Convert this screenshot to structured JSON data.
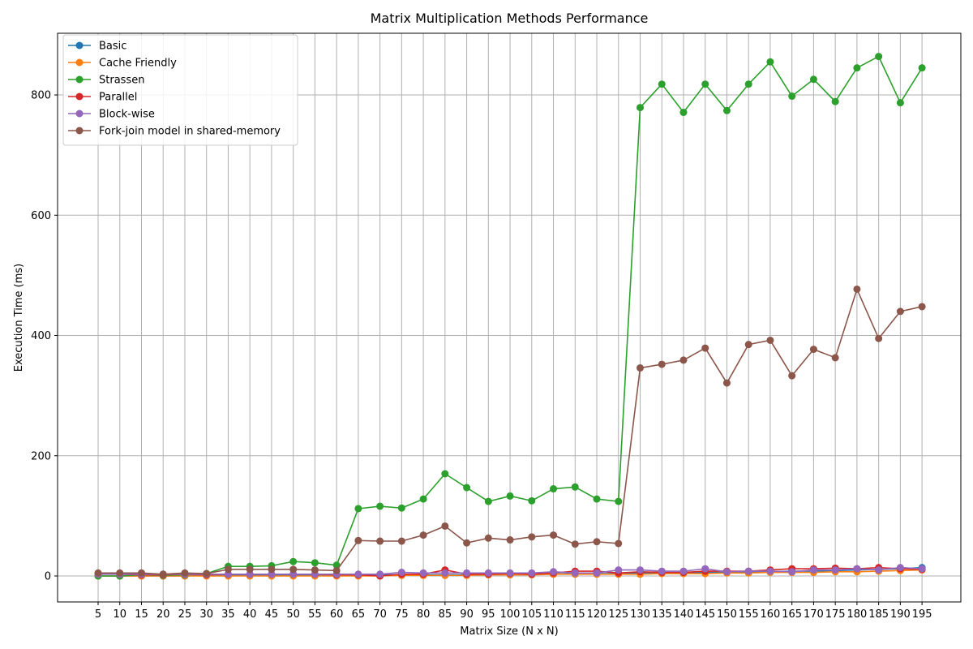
{
  "chart_data": {
    "type": "line",
    "title": "Matrix Multiplication Methods Performance",
    "xlabel": "Matrix Size (N x N)",
    "ylabel": "Execution Time (ms)",
    "ylim": [
      -45,
      900
    ],
    "yticks": [
      0,
      200,
      400,
      600,
      800
    ],
    "grid": true,
    "legend_position": "upper-left",
    "x": [
      5,
      10,
      15,
      20,
      25,
      30,
      35,
      40,
      45,
      50,
      55,
      60,
      65,
      70,
      75,
      80,
      85,
      90,
      95,
      100,
      105,
      110,
      115,
      120,
      125,
      130,
      135,
      140,
      145,
      150,
      155,
      160,
      165,
      170,
      175,
      180,
      185,
      190,
      195
    ],
    "series": [
      {
        "name": "Basic",
        "color": "#1f77b4",
        "values": [
          0,
          0,
          0,
          0,
          0,
          1,
          1,
          1,
          1,
          1,
          1,
          1,
          2,
          2,
          2,
          2,
          2,
          2,
          3,
          3,
          3,
          3,
          4,
          4,
          4,
          5,
          5,
          5,
          6,
          6,
          7,
          7,
          8,
          8,
          9,
          10,
          11,
          12,
          14
        ]
      },
      {
        "name": "Cache Friendly",
        "color": "#ff7f0e",
        "values": [
          0,
          0,
          0,
          0,
          0,
          0,
          0,
          0,
          0,
          0,
          0,
          0,
          0,
          0,
          1,
          1,
          1,
          1,
          2,
          2,
          2,
          3,
          3,
          3,
          3,
          3,
          4,
          4,
          4,
          5,
          5,
          6,
          6,
          6,
          7,
          7,
          8,
          9,
          10
        ]
      },
      {
        "name": "Strassen",
        "color": "#2ca02c",
        "values": [
          0,
          0,
          2,
          1,
          2,
          4,
          16,
          16,
          17,
          24,
          22,
          18,
          112,
          116,
          113,
          128,
          170,
          147,
          124,
          133,
          125,
          145,
          148,
          128,
          124,
          779,
          818,
          771,
          818,
          774,
          818,
          855,
          798,
          826,
          789,
          845,
          864,
          787,
          845
        ]
      },
      {
        "name": "Parallel",
        "color": "#d62728",
        "values": [
          4,
          3,
          2,
          2,
          3,
          2,
          3,
          3,
          3,
          3,
          3,
          2,
          2,
          0,
          3,
          3,
          10,
          3,
          3,
          4,
          3,
          5,
          8,
          8,
          5,
          7,
          6,
          6,
          8,
          8,
          8,
          10,
          12,
          12,
          13,
          12,
          14,
          12,
          11
        ]
      },
      {
        "name": "Block-wise",
        "color": "#9467bd",
        "values": [
          3,
          3,
          3,
          3,
          3,
          3,
          3,
          3,
          3,
          3,
          3,
          3,
          3,
          3,
          6,
          5,
          5,
          5,
          5,
          5,
          5,
          7,
          5,
          5,
          10,
          10,
          8,
          8,
          12,
          7,
          8,
          8,
          7,
          10,
          10,
          12,
          10,
          14,
          12
        ]
      },
      {
        "name": "Fork-join model in shared-memory",
        "color": "#8c564b",
        "values": [
          5,
          5,
          5,
          3,
          5,
          4,
          11,
          11,
          11,
          11,
          10,
          9,
          59,
          58,
          58,
          68,
          83,
          55,
          63,
          60,
          65,
          68,
          53,
          57,
          54,
          346,
          352,
          359,
          379,
          321,
          385,
          392,
          333,
          377,
          363,
          477,
          395,
          440,
          448
        ]
      }
    ]
  }
}
